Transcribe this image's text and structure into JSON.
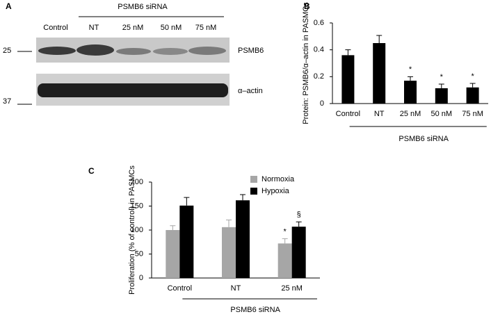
{
  "panel_a": {
    "label": "A",
    "group_label": "PSMB6 siRNA",
    "lanes": [
      "Control",
      "NT",
      "25 nM",
      "50 nM",
      "75 nM"
    ],
    "markers": [
      "25",
      "37"
    ],
    "bands": [
      "PSMB6",
      "α–actin"
    ]
  },
  "chart_data": [
    {
      "type": "bar",
      "panel_label": "B",
      "y_label": "Protein: PSMB6/α–actin in PASMCs",
      "group_label": "PSMB6 siRNA",
      "categories": [
        "Control",
        "NT",
        "25 nM",
        "50 nM",
        "75 nM"
      ],
      "series": [
        {
          "color": "#000000",
          "values": [
            0.36,
            0.45,
            0.17,
            0.114,
            0.12
          ],
          "errors": [
            0.04,
            0.057,
            0.03,
            0.031,
            0.03
          ],
          "markers": [
            null,
            null,
            "*",
            "*",
            "*"
          ]
        }
      ],
      "ylim": [
        0,
        0.6
      ],
      "yticks": [
        0,
        0.2,
        0.4,
        0.6
      ]
    },
    {
      "type": "bar",
      "panel_label": "C",
      "y_label": "Proliferation (% of control) in PASMCs",
      "group_label": "PSMB6 siRNA",
      "categories": [
        "Control",
        "NT",
        "25 nM"
      ],
      "series": [
        {
          "name": "Normoxia",
          "color": "#a6a6a6",
          "values": [
            100,
            106,
            72
          ],
          "errors": [
            9,
            15,
            10
          ],
          "markers": [
            null,
            null,
            "*"
          ]
        },
        {
          "name": "Hypoxia",
          "color": "#000000",
          "values": [
            151,
            162,
            107
          ],
          "errors": [
            17,
            12,
            10
          ],
          "markers": [
            null,
            null,
            "§"
          ]
        }
      ],
      "ylim": [
        0,
        200
      ],
      "yticks": [
        0,
        50,
        100,
        150,
        200
      ],
      "legend": "upper right"
    }
  ]
}
